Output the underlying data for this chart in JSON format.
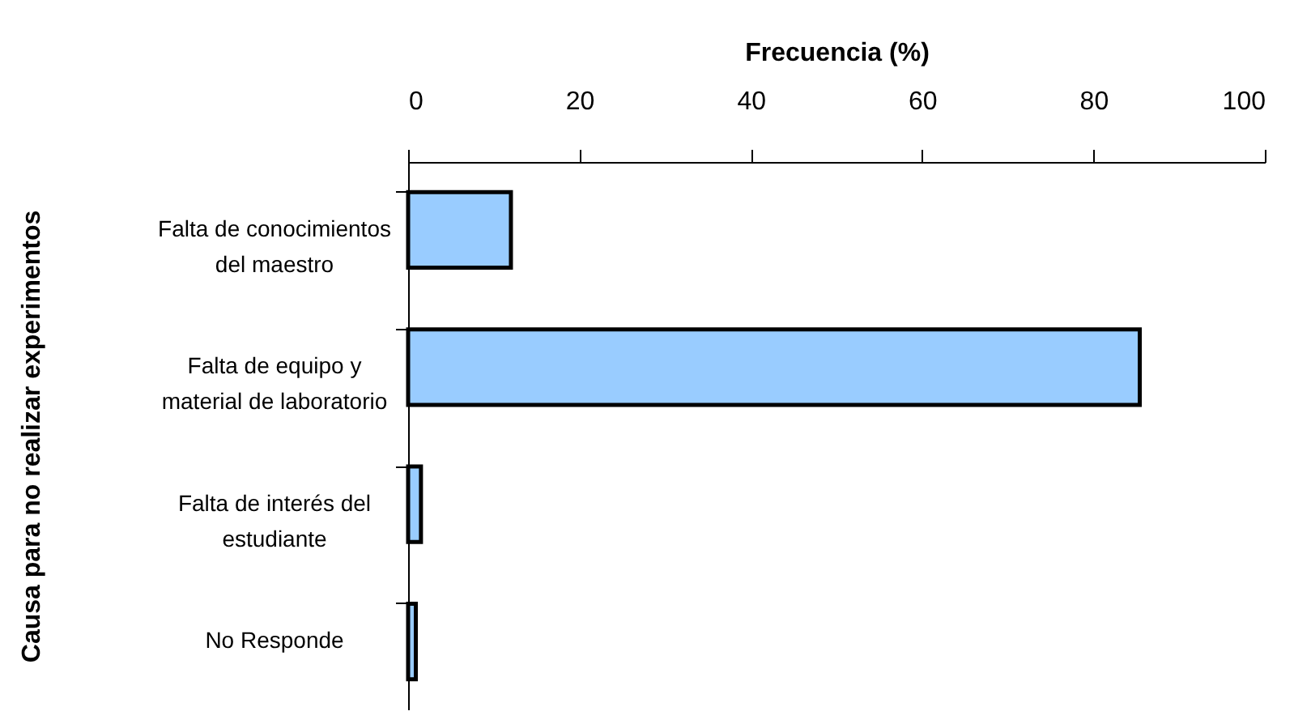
{
  "chart_data": {
    "type": "bar",
    "orientation": "horizontal",
    "xlabel": "Frecuencia (%)",
    "ylabel": "Causa para no realizar experimentos",
    "categories": [
      "Falta de conocimientos del maestro",
      "Falta de equipo y material de laboratorio",
      "Falta de interés del estudiante",
      "No Responde"
    ],
    "values": [
      12.0,
      85.4,
      1.5,
      0.9
    ],
    "color": "#99ccff",
    "xlim": [
      0,
      100
    ],
    "xticks": [
      0,
      20,
      40,
      60,
      80,
      100
    ],
    "grid": false
  }
}
